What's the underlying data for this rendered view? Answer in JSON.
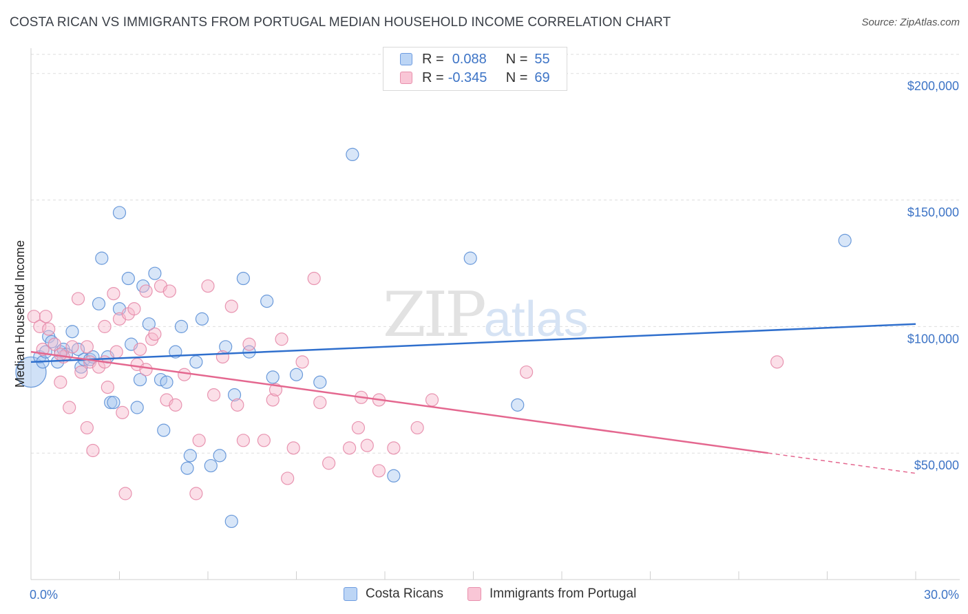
{
  "title": "COSTA RICAN VS IMMIGRANTS FROM PORTUGAL MEDIAN HOUSEHOLD INCOME CORRELATION CHART",
  "source": "Source: ZipAtlas.com",
  "watermark": "ZIPatlas",
  "legend": {
    "series1": {
      "r_label": "R =",
      "r_value": "0.088",
      "n_label": "N =",
      "n_value": "55"
    },
    "series2": {
      "r_label": "R =",
      "r_value": "-0.345",
      "n_label": "N =",
      "n_value": "69"
    }
  },
  "colors": {
    "blue_fill": "#a9c8f0",
    "blue_stroke": "#5b8fd6",
    "blue_line": "#2f6fcd",
    "pink_fill": "#f7b8cc",
    "pink_stroke": "#e68aa8",
    "pink_line": "#e4678f",
    "tick_text": "#3d74c6",
    "grid": "#dddddd"
  },
  "chart_data": {
    "type": "scatter",
    "title": "COSTA RICAN VS IMMIGRANTS FROM PORTUGAL MEDIAN HOUSEHOLD INCOME CORRELATION CHART",
    "xlabel": "",
    "ylabel": "Median Household Income",
    "xlim": [
      0,
      30
    ],
    "ylim": [
      0,
      210000
    ],
    "x_tick_labels": [
      "0.0%",
      "30.0%"
    ],
    "y_ticks": [
      {
        "value": 50000,
        "label": "$50,000"
      },
      {
        "value": 100000,
        "label": "$100,000"
      },
      {
        "value": 150000,
        "label": "$150,000"
      },
      {
        "value": 200000,
        "label": "$200,000"
      }
    ],
    "series": [
      {
        "name": "Costa Ricans",
        "color": "blue",
        "trend": {
          "x0": 0,
          "y0": 86000,
          "x1": 30,
          "y1": 101000,
          "solid_until": 30
        },
        "points": [
          [
            0.0,
            82000
          ],
          [
            0.3,
            88000
          ],
          [
            0.4,
            86000
          ],
          [
            0.5,
            90000
          ],
          [
            0.6,
            96000
          ],
          [
            0.7,
            94000
          ],
          [
            0.9,
            86000
          ],
          [
            1.0,
            90000
          ],
          [
            1.1,
            91000
          ],
          [
            1.2,
            89000
          ],
          [
            1.4,
            98000
          ],
          [
            1.6,
            91000
          ],
          [
            1.7,
            84000
          ],
          [
            1.8,
            87000
          ],
          [
            2.0,
            87000
          ],
          [
            2.1,
            88000
          ],
          [
            2.3,
            109000
          ],
          [
            2.4,
            127000
          ],
          [
            2.6,
            88000
          ],
          [
            2.7,
            70000
          ],
          [
            2.8,
            70000
          ],
          [
            3.0,
            107000
          ],
          [
            3.0,
            145000
          ],
          [
            3.3,
            119000
          ],
          [
            3.4,
            93000
          ],
          [
            3.6,
            68000
          ],
          [
            3.7,
            79000
          ],
          [
            3.8,
            116000
          ],
          [
            4.0,
            101000
          ],
          [
            4.2,
            121000
          ],
          [
            4.4,
            79000
          ],
          [
            4.5,
            59000
          ],
          [
            4.6,
            78000
          ],
          [
            4.9,
            90000
          ],
          [
            5.1,
            100000
          ],
          [
            5.3,
            44000
          ],
          [
            5.4,
            49000
          ],
          [
            5.6,
            86000
          ],
          [
            5.8,
            103000
          ],
          [
            6.1,
            45000
          ],
          [
            6.4,
            49000
          ],
          [
            6.6,
            92000
          ],
          [
            6.8,
            23000
          ],
          [
            6.9,
            73000
          ],
          [
            7.4,
            90000
          ],
          [
            7.2,
            119000
          ],
          [
            8.2,
            80000
          ],
          [
            9.0,
            81000
          ],
          [
            9.8,
            78000
          ],
          [
            10.9,
            168000
          ],
          [
            12.3,
            41000
          ],
          [
            14.9,
            127000
          ],
          [
            16.5,
            69000
          ],
          [
            27.6,
            134000
          ],
          [
            8.0,
            110000
          ]
        ]
      },
      {
        "name": "Immigrants from Portugal",
        "color": "pink",
        "trend": {
          "x0": 0,
          "y0": 90000,
          "x1": 30,
          "y1": 42000,
          "solid_until": 25.0
        },
        "points": [
          [
            0.1,
            104000
          ],
          [
            0.3,
            100000
          ],
          [
            0.4,
            91000
          ],
          [
            0.5,
            104000
          ],
          [
            0.6,
            99000
          ],
          [
            0.8,
            93000
          ],
          [
            1.0,
            78000
          ],
          [
            1.1,
            88000
          ],
          [
            1.3,
            68000
          ],
          [
            1.4,
            92000
          ],
          [
            1.6,
            111000
          ],
          [
            1.7,
            82000
          ],
          [
            1.9,
            92000
          ],
          [
            1.9,
            60000
          ],
          [
            2.0,
            86000
          ],
          [
            2.1,
            51000
          ],
          [
            2.3,
            84000
          ],
          [
            2.5,
            86000
          ],
          [
            2.5,
            100000
          ],
          [
            2.6,
            76000
          ],
          [
            2.8,
            113000
          ],
          [
            2.9,
            90000
          ],
          [
            3.0,
            103000
          ],
          [
            3.1,
            66000
          ],
          [
            3.2,
            34000
          ],
          [
            3.3,
            105000
          ],
          [
            3.5,
            107000
          ],
          [
            3.6,
            85000
          ],
          [
            3.7,
            91000
          ],
          [
            3.9,
            83000
          ],
          [
            3.9,
            114000
          ],
          [
            4.1,
            95000
          ],
          [
            4.2,
            97000
          ],
          [
            4.4,
            116000
          ],
          [
            4.6,
            71000
          ],
          [
            4.7,
            114000
          ],
          [
            4.9,
            69000
          ],
          [
            5.2,
            81000
          ],
          [
            5.6,
            34000
          ],
          [
            5.7,
            55000
          ],
          [
            6.0,
            116000
          ],
          [
            6.2,
            73000
          ],
          [
            6.5,
            88000
          ],
          [
            6.8,
            108000
          ],
          [
            7.0,
            69000
          ],
          [
            7.2,
            55000
          ],
          [
            7.4,
            93000
          ],
          [
            7.9,
            55000
          ],
          [
            8.2,
            71000
          ],
          [
            8.3,
            75000
          ],
          [
            8.5,
            95000
          ],
          [
            8.7,
            40000
          ],
          [
            8.9,
            52000
          ],
          [
            9.2,
            86000
          ],
          [
            9.6,
            119000
          ],
          [
            9.8,
            70000
          ],
          [
            10.1,
            46000
          ],
          [
            10.8,
            52000
          ],
          [
            11.1,
            60000
          ],
          [
            11.4,
            53000
          ],
          [
            11.2,
            72000
          ],
          [
            11.8,
            71000
          ],
          [
            11.8,
            43000
          ],
          [
            12.3,
            52000
          ],
          [
            13.1,
            60000
          ],
          [
            13.6,
            71000
          ],
          [
            16.8,
            82000
          ],
          [
            25.3,
            86000
          ],
          [
            1.0,
            89000
          ]
        ]
      }
    ]
  }
}
